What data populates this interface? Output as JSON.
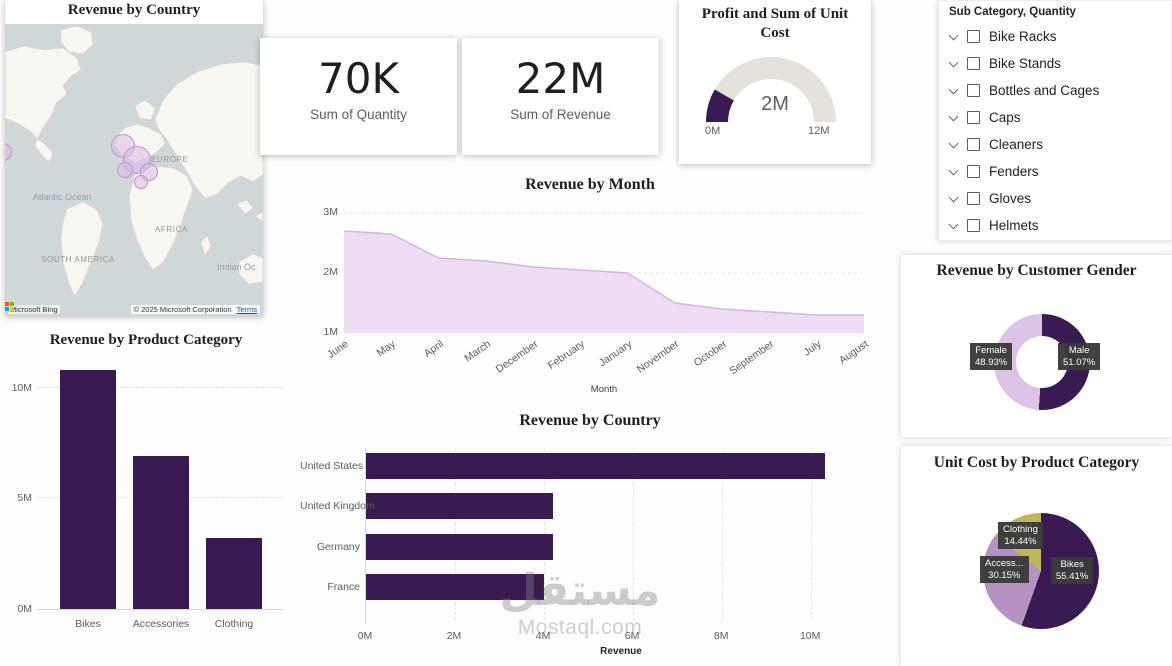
{
  "colors": {
    "primary": "#3a1a52",
    "light_purple": "#dcc2e6",
    "mid_purple": "#b592c2",
    "khaki": "#bdb757",
    "area_fill": "#eedcf4",
    "area_line": "#d9b4e3",
    "callout_box": "#3a3a3a",
    "gauge_track": "#e4e1db"
  },
  "map_card": {
    "title": "Revenue by Country",
    "region_labels": [
      "EUROPE",
      "AFRICA",
      "SOUTH AMERICA"
    ],
    "ocean_labels": [
      "Atlantic Ocean",
      "Indian Oc"
    ],
    "bing_label": "Microsoft Bing",
    "copyright": "© 2025 Microsoft Corporation",
    "terms": "Terms"
  },
  "kpi_cards": [
    {
      "value": "70K",
      "label": "Sum of Quantity"
    },
    {
      "value": "22M",
      "label": "Sum of Revenue"
    }
  ],
  "gauge": {
    "title": "Profit and Sum of Unit Cost",
    "value": 2,
    "min": 0,
    "max": 12,
    "value_label": "2M",
    "min_label": "0M",
    "max_label": "12M"
  },
  "slicer": {
    "title": "Sub Category, Quantity",
    "items": [
      "Bike Racks",
      "Bike Stands",
      "Bottles and Cages",
      "Caps",
      "Cleaners",
      "Fenders",
      "Gloves",
      "Helmets"
    ]
  },
  "chart_data": [
    {
      "id": "revenue_by_month",
      "type": "area",
      "title": "Revenue by Month",
      "xlabel": "Month",
      "categories": [
        "June",
        "May",
        "April",
        "March",
        "December",
        "February",
        "January",
        "November",
        "October",
        "September",
        "July",
        "August"
      ],
      "values": [
        2.7,
        2.65,
        2.25,
        2.2,
        2.1,
        2.05,
        2.0,
        1.5,
        1.4,
        1.35,
        1.3,
        1.3
      ],
      "unit": "M",
      "ylim": [
        1,
        3
      ],
      "yticks": [
        {
          "v": 1,
          "label": "1M"
        },
        {
          "v": 2,
          "label": "2M"
        },
        {
          "v": 3,
          "label": "3M"
        }
      ],
      "grid": true,
      "legend": "none"
    },
    {
      "id": "revenue_by_product_category",
      "type": "bar",
      "title": "Revenue by Product Category",
      "categories": [
        "Bikes",
        "Accessories",
        "Clothing"
      ],
      "values": [
        10.8,
        6.9,
        3.2
      ],
      "unit": "M",
      "ylim": [
        0,
        11.3
      ],
      "yticks": [
        {
          "v": 0,
          "label": "0M"
        },
        {
          "v": 5,
          "label": "5M"
        },
        {
          "v": 10,
          "label": "10M"
        }
      ],
      "grid": true,
      "legend": "none"
    },
    {
      "id": "revenue_by_country",
      "type": "bar-horizontal",
      "title": "Revenue by Country",
      "xlabel": "Revenue",
      "categories": [
        "United States",
        "United Kingdom",
        "Germany",
        "France"
      ],
      "values": [
        10.3,
        4.2,
        4.2,
        4.0
      ],
      "unit": "M",
      "xlim": [
        0,
        11.5
      ],
      "xticks": [
        {
          "v": 0,
          "label": "0M"
        },
        {
          "v": 2,
          "label": "2M"
        },
        {
          "v": 4,
          "label": "4M"
        },
        {
          "v": 6,
          "label": "6M"
        },
        {
          "v": 8,
          "label": "8M"
        },
        {
          "v": 10,
          "label": "10M"
        }
      ],
      "grid": true,
      "legend": "none"
    },
    {
      "id": "revenue_by_customer_gender",
      "type": "donut",
      "title": "Revenue by Customer Gender",
      "slices": [
        {
          "label": "Male",
          "pct": 51.07,
          "color": "#3a1a52"
        },
        {
          "label": "Female",
          "pct": 48.93,
          "color": "#dcc2e6"
        }
      ]
    },
    {
      "id": "unit_cost_by_product_category",
      "type": "pie",
      "title": "Unit Cost by Product Category",
      "slices": [
        {
          "label": "Bikes",
          "pct": 55.41,
          "color": "#3a1a52"
        },
        {
          "label": "Access...",
          "pct": 30.15,
          "color": "#b592c2"
        },
        {
          "label": "Clothing",
          "pct": 14.44,
          "color": "#bdb757"
        }
      ]
    }
  ],
  "watermark": {
    "line1": "مستقل",
    "line2": "Mostaql.com"
  }
}
